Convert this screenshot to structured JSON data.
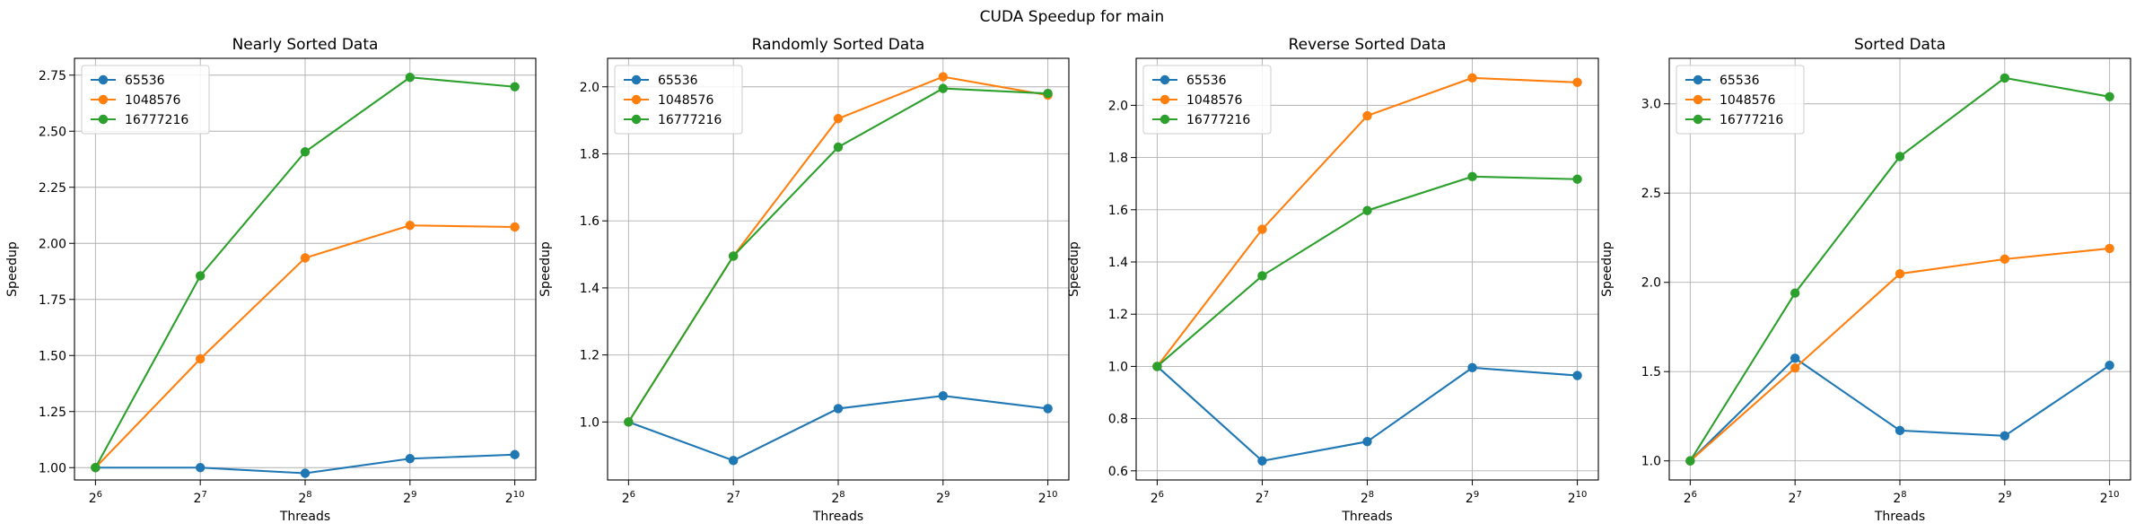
{
  "figure": {
    "title": "CUDA Speedup for main"
  },
  "chart_data": [
    {
      "type": "line",
      "title": "Nearly Sorted Data",
      "xlabel": "Threads",
      "ylabel": "Speedup",
      "x": [
        64,
        128,
        256,
        512,
        1024
      ],
      "x_tick_labels": [
        "2^6",
        "2^7",
        "2^8",
        "2^9",
        "2^10"
      ],
      "x_scale": "log2",
      "ylim": [
        0.945,
        2.825
      ],
      "y_ticks": [
        1.0,
        1.25,
        1.5,
        1.75,
        2.0,
        2.25,
        2.5,
        2.75
      ],
      "y_tick_labels": [
        "1.00",
        "1.25",
        "1.50",
        "1.75",
        "2.00",
        "2.25",
        "2.50",
        "2.75"
      ],
      "grid": true,
      "legend": "upper left",
      "series": [
        {
          "name": "65536",
          "color": "#1f77b4",
          "values": [
            1.0,
            1.0,
            0.975,
            1.04,
            1.058
          ]
        },
        {
          "name": "1048576",
          "color": "#ff7f0e",
          "values": [
            1.0,
            1.485,
            1.935,
            2.08,
            2.073
          ]
        },
        {
          "name": "16777216",
          "color": "#2ca02c",
          "values": [
            1.0,
            1.855,
            2.408,
            2.74,
            2.698
          ]
        }
      ]
    },
    {
      "type": "line",
      "title": "Randomly Sorted Data",
      "xlabel": "Threads",
      "ylabel": "Speedup",
      "x": [
        64,
        128,
        256,
        512,
        1024
      ],
      "x_tick_labels": [
        "2^6",
        "2^7",
        "2^8",
        "2^9",
        "2^10"
      ],
      "x_scale": "log2",
      "ylim": [
        0.827,
        2.085
      ],
      "y_ticks": [
        1.0,
        1.2,
        1.4,
        1.6,
        1.8,
        2.0
      ],
      "y_tick_labels": [
        "1.0",
        "1.2",
        "1.4",
        "1.6",
        "1.8",
        "2.0"
      ],
      "grid": true,
      "legend": "upper left",
      "series": [
        {
          "name": "65536",
          "color": "#1f77b4",
          "values": [
            1.0,
            0.885,
            1.04,
            1.078,
            1.04
          ]
        },
        {
          "name": "1048576",
          "color": "#ff7f0e",
          "values": [
            1.0,
            1.495,
            1.905,
            2.03,
            1.975
          ]
        },
        {
          "name": "16777216",
          "color": "#2ca02c",
          "values": [
            1.0,
            1.495,
            1.82,
            1.995,
            1.98
          ]
        }
      ]
    },
    {
      "type": "line",
      "title": "Reverse Sorted Data",
      "xlabel": "Threads",
      "ylabel": "Speedup",
      "x": [
        64,
        128,
        256,
        512,
        1024
      ],
      "x_tick_labels": [
        "2^6",
        "2^7",
        "2^8",
        "2^9",
        "2^10"
      ],
      "x_scale": "log2",
      "ylim": [
        0.565,
        2.18
      ],
      "y_ticks": [
        0.6,
        0.8,
        1.0,
        1.2,
        1.4,
        1.6,
        1.8,
        2.0
      ],
      "y_tick_labels": [
        "0.6",
        "0.8",
        "1.0",
        "1.2",
        "1.4",
        "1.6",
        "1.8",
        "2.0"
      ],
      "grid": true,
      "legend": "upper left",
      "series": [
        {
          "name": "65536",
          "color": "#1f77b4",
          "values": [
            1.0,
            0.638,
            0.712,
            0.995,
            0.965
          ]
        },
        {
          "name": "1048576",
          "color": "#ff7f0e",
          "values": [
            1.0,
            1.525,
            1.96,
            2.105,
            2.088
          ]
        },
        {
          "name": "16777216",
          "color": "#2ca02c",
          "values": [
            1.0,
            1.347,
            1.597,
            1.727,
            1.717
          ]
        }
      ]
    },
    {
      "type": "line",
      "title": "Sorted Data",
      "xlabel": "Threads",
      "ylabel": "Speedup",
      "x": [
        64,
        128,
        256,
        512,
        1024
      ],
      "x_tick_labels": [
        "2^6",
        "2^7",
        "2^8",
        "2^9",
        "2^10"
      ],
      "x_scale": "log2",
      "ylim": [
        0.893,
        3.255
      ],
      "y_ticks": [
        1.0,
        1.5,
        2.0,
        2.5,
        3.0
      ],
      "y_tick_labels": [
        "1.0",
        "1.5",
        "2.0",
        "2.5",
        "3.0"
      ],
      "grid": true,
      "legend": "upper left",
      "series": [
        {
          "name": "65536",
          "color": "#1f77b4",
          "values": [
            1.0,
            1.575,
            1.17,
            1.14,
            1.535
          ]
        },
        {
          "name": "1048576",
          "color": "#ff7f0e",
          "values": [
            1.0,
            1.52,
            2.048,
            2.13,
            2.19
          ]
        },
        {
          "name": "16777216",
          "color": "#2ca02c",
          "values": [
            1.0,
            1.94,
            2.705,
            3.145,
            3.04
          ]
        }
      ]
    }
  ]
}
